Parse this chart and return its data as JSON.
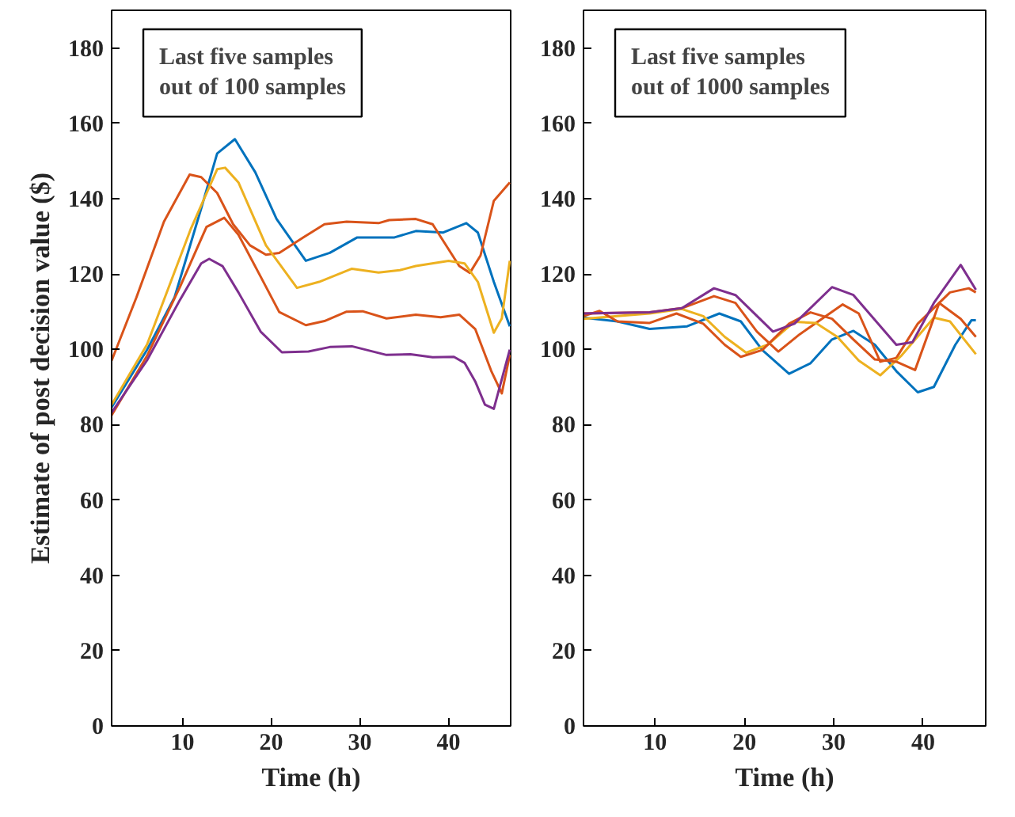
{
  "chart_data": [
    {
      "type": "line",
      "xlabel": "Time (h)",
      "ylabel": "Estimate of post decision value ($)",
      "annotations": [
        "Last five samples\nout of 100 samples"
      ],
      "xlim": [
        2,
        47
      ],
      "ylim": [
        0,
        190
      ],
      "xticks": [
        10,
        20,
        30,
        40
      ],
      "yticks": [
        0,
        20,
        40,
        60,
        80,
        100,
        120,
        140,
        160,
        180
      ],
      "series": [
        {
          "color": "#0072bd",
          "x": [
            2.0,
            6.0,
            9.1,
            12.1,
            13.9,
            15.9,
            18.2,
            20.6,
            23.9,
            26.6,
            29.7,
            33.9,
            36.3,
            39.4,
            42.0,
            43.3,
            45.1,
            46.9
          ],
          "values": [
            84.6,
            99.9,
            113.8,
            137.4,
            152,
            155.8,
            147,
            134.6,
            123.5,
            125.6,
            129.7,
            129.7,
            131.4,
            131,
            133.5,
            131,
            117.9,
            106.1
          ]
        },
        {
          "color": "#d95319",
          "x": [
            2.0,
            4.8,
            7.9,
            10.8,
            12.1,
            13.9,
            15.7,
            17.6,
            19.4,
            20.9,
            23.6,
            26.0,
            28.5,
            32.1,
            33.3,
            36.3,
            38.2,
            41.2,
            42.4,
            43.6,
            45.1,
            46.9
          ],
          "values": [
            97,
            113.8,
            133.9,
            146.4,
            145.7,
            141.5,
            133.2,
            127.6,
            125.1,
            125.6,
            129.7,
            133.2,
            133.9,
            133.5,
            134.3,
            134.6,
            133.2,
            122.1,
            120.3,
            124.9,
            139.4,
            144.3
          ]
        },
        {
          "color": "#edb120",
          "x": [
            2.0,
            6.0,
            10.9,
            13.9,
            14.8,
            16.3,
            19.4,
            22.9,
            25.4,
            29.1,
            32.1,
            34.5,
            36.3,
            40.0,
            41.8,
            43.3,
            45.1,
            46.0,
            46.9
          ],
          "values": [
            85.3,
            101.3,
            131.8,
            147.8,
            148.2,
            144.3,
            127.6,
            116.3,
            117.9,
            121.4,
            120.4,
            121,
            122.1,
            123.5,
            122.8,
            117.9,
            104.4,
            108.2,
            123.5
          ]
        },
        {
          "color": "#d95319",
          "x": [
            2.0,
            6.0,
            9.7,
            12.7,
            14.7,
            16.3,
            18.8,
            20.9,
            23.9,
            26.0,
            28.5,
            30.3,
            33.0,
            36.3,
            39.1,
            41.2,
            43.0,
            44.8,
            46.0,
            46.9
          ],
          "values": [
            82.5,
            98.3,
            116.5,
            132.5,
            134.9,
            130.4,
            119.3,
            109.9,
            106.4,
            107.5,
            110,
            110.1,
            108.2,
            109.2,
            108.5,
            109.2,
            105.4,
            94.3,
            88.3,
            98.5
          ]
        },
        {
          "color": "#7e2f8e",
          "x": [
            2.0,
            6.0,
            9.7,
            12.1,
            13.0,
            14.5,
            16.3,
            18.8,
            21.2,
            24.2,
            26.6,
            29.1,
            33.0,
            35.7,
            38.2,
            40.6,
            41.8,
            43.0,
            44.1,
            45.1,
            46.9
          ],
          "values": [
            83.2,
            97.1,
            113.1,
            122.8,
            124,
            122.1,
            115.1,
            104.7,
            99.2,
            99.4,
            100.6,
            100.8,
            98.5,
            98.7,
            97.9,
            98,
            96.4,
            91.5,
            85.3,
            84.2,
            99.9
          ]
        }
      ]
    },
    {
      "type": "line",
      "xlabel": "Time (h)",
      "annotations": [
        "Last five samples\nout of 1000 samples"
      ],
      "xlim": [
        2,
        47
      ],
      "ylim": [
        0,
        190
      ],
      "xticks": [
        10,
        20,
        30,
        40
      ],
      "yticks": [
        0,
        20,
        40,
        60,
        80,
        100,
        120,
        140,
        160,
        180
      ],
      "series": [
        {
          "color": "#0072bd",
          "x": [
            2.0,
            5.8,
            9.4,
            13.6,
            17.2,
            19.6,
            22.0,
            25.0,
            27.4,
            29.8,
            32.2,
            34.6,
            37.0,
            39.4,
            41.2,
            43.6,
            45.4,
            45.9
          ],
          "values": [
            108.4,
            107.4,
            105.4,
            106.1,
            109.5,
            107.4,
            99.8,
            93.5,
            96.3,
            102.6,
            104.9,
            101.2,
            94.2,
            88.6,
            90,
            101.2,
            107.7,
            107.7
          ]
        },
        {
          "color": "#d95319",
          "x": [
            2.0,
            9.4,
            13.0,
            16.6,
            19.0,
            21.4,
            23.8,
            26.2,
            31.0,
            32.8,
            35.2,
            37.0,
            39.4,
            43.0,
            45.1,
            45.9
          ],
          "values": [
            109.5,
            109.8,
            110.9,
            114.1,
            112.3,
            104.7,
            99.4,
            104,
            111.9,
            109.5,
            96.7,
            97.7,
            106.8,
            115.1,
            116.2,
            115.1
          ]
        },
        {
          "color": "#edb120",
          "x": [
            2.0,
            5.8,
            9.4,
            13.0,
            15.4,
            17.8,
            20.2,
            22.6,
            25.6,
            28.0,
            30.4,
            32.8,
            35.2,
            37.6,
            41.2,
            43.0,
            45.9
          ],
          "values": [
            108.1,
            108.8,
            109.5,
            110.7,
            108.8,
            103.3,
            99.1,
            101.2,
            107.3,
            107,
            103.3,
            97,
            93.1,
            98.4,
            108.4,
            107.4,
            98.7
          ]
        },
        {
          "color": "#d95319",
          "x": [
            2.0,
            3.8,
            5.8,
            9.4,
            12.4,
            15.4,
            17.8,
            19.6,
            22.0,
            25.0,
            27.4,
            29.8,
            32.2,
            34.6,
            37.0,
            39.1,
            41.8,
            44.2,
            45.9
          ],
          "values": [
            108.8,
            110.2,
            107.4,
            107,
            109.5,
            106.8,
            101.2,
            98,
            99.8,
            106.8,
            109.8,
            108.1,
            102.6,
            97.3,
            96.7,
            94.5,
            112.3,
            108.1,
            103.3
          ]
        },
        {
          "color": "#7e2f8e",
          "x": [
            2.0,
            9.4,
            13.0,
            16.6,
            19.0,
            23.2,
            25.6,
            29.8,
            32.2,
            37.0,
            38.8,
            41.2,
            44.2,
            45.9
          ],
          "values": [
            109.5,
            109.8,
            110.9,
            116.2,
            114.4,
            104.7,
            106.8,
            116.5,
            114.4,
            101.2,
            101.9,
            112.3,
            122.4,
            115.8
          ]
        }
      ]
    }
  ]
}
